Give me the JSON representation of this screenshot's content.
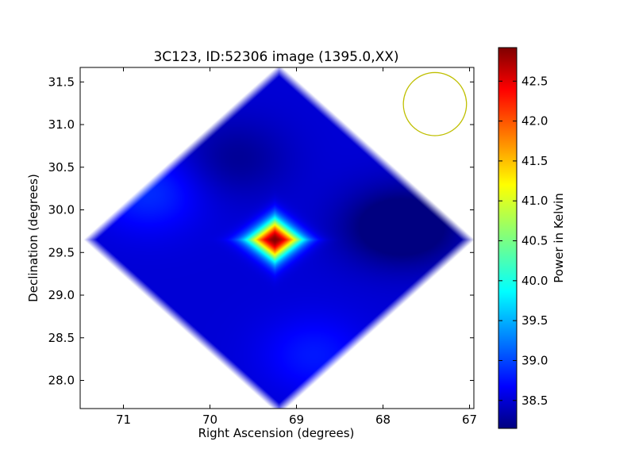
{
  "chart_data": {
    "type": "heatmap",
    "title": "3C123, ID:52306 image (1395.0,XX)",
    "xlabel": "Right Ascension (degrees)",
    "ylabel": "Declination (degrees)",
    "xlim": [
      71.5,
      66.95
    ],
    "ylim": [
      27.67,
      31.67
    ],
    "x_ticks": [
      71,
      70,
      69,
      68,
      67
    ],
    "x_tick_labels": [
      "71",
      "70",
      "69",
      "68",
      "67"
    ],
    "y_ticks": [
      28.0,
      28.5,
      29.0,
      29.5,
      30.0,
      30.5,
      31.0,
      31.5
    ],
    "y_tick_labels": [
      "28.0",
      "28.5",
      "29.0",
      "29.5",
      "30.0",
      "30.5",
      "31.0",
      "31.5"
    ],
    "colormap": "jet",
    "colorbar": {
      "label": "Power in Kelvin",
      "range": [
        38.15,
        42.92
      ],
      "ticks": [
        38.5,
        39.0,
        39.5,
        40.0,
        40.5,
        41.0,
        41.5,
        42.0,
        42.5
      ],
      "tick_labels": [
        "38.5",
        "39.0",
        "39.5",
        "40.0",
        "40.5",
        "41.0",
        "41.5",
        "42.0",
        "42.5"
      ]
    },
    "coverage": {
      "shape": "diamond",
      "center_ra": 69.2,
      "center_dec": 29.65,
      "vertices": [
        {
          "ra": 69.2,
          "dec": 31.67
        },
        {
          "ra": 67.1,
          "dec": 29.65
        },
        {
          "ra": 69.2,
          "dec": 27.72
        },
        {
          "ra": 71.45,
          "dec": 29.65
        }
      ]
    },
    "background_level": 38.55,
    "features": [
      {
        "kind": "peak",
        "ra": 69.25,
        "dec": 29.65,
        "value": 42.9,
        "shape": "diamond",
        "half_width_ra": 0.45,
        "half_width_dec": 0.35
      },
      {
        "kind": "depression",
        "ra": 69.7,
        "dec": 30.6,
        "value": 38.25
      },
      {
        "kind": "depression",
        "ra": 68.0,
        "dec": 29.8,
        "value": 38.2
      },
      {
        "kind": "depression",
        "ra": 67.6,
        "dec": 29.8,
        "value": 38.15
      },
      {
        "kind": "bump",
        "ra": 70.7,
        "dec": 30.2,
        "value": 38.95
      },
      {
        "kind": "bump",
        "ra": 68.8,
        "dec": 28.3,
        "value": 38.85
      }
    ],
    "beam_circle": {
      "center_ra": 67.4,
      "center_dec": 31.24,
      "radius_deg": 0.37,
      "color": "#bfbf00"
    }
  }
}
